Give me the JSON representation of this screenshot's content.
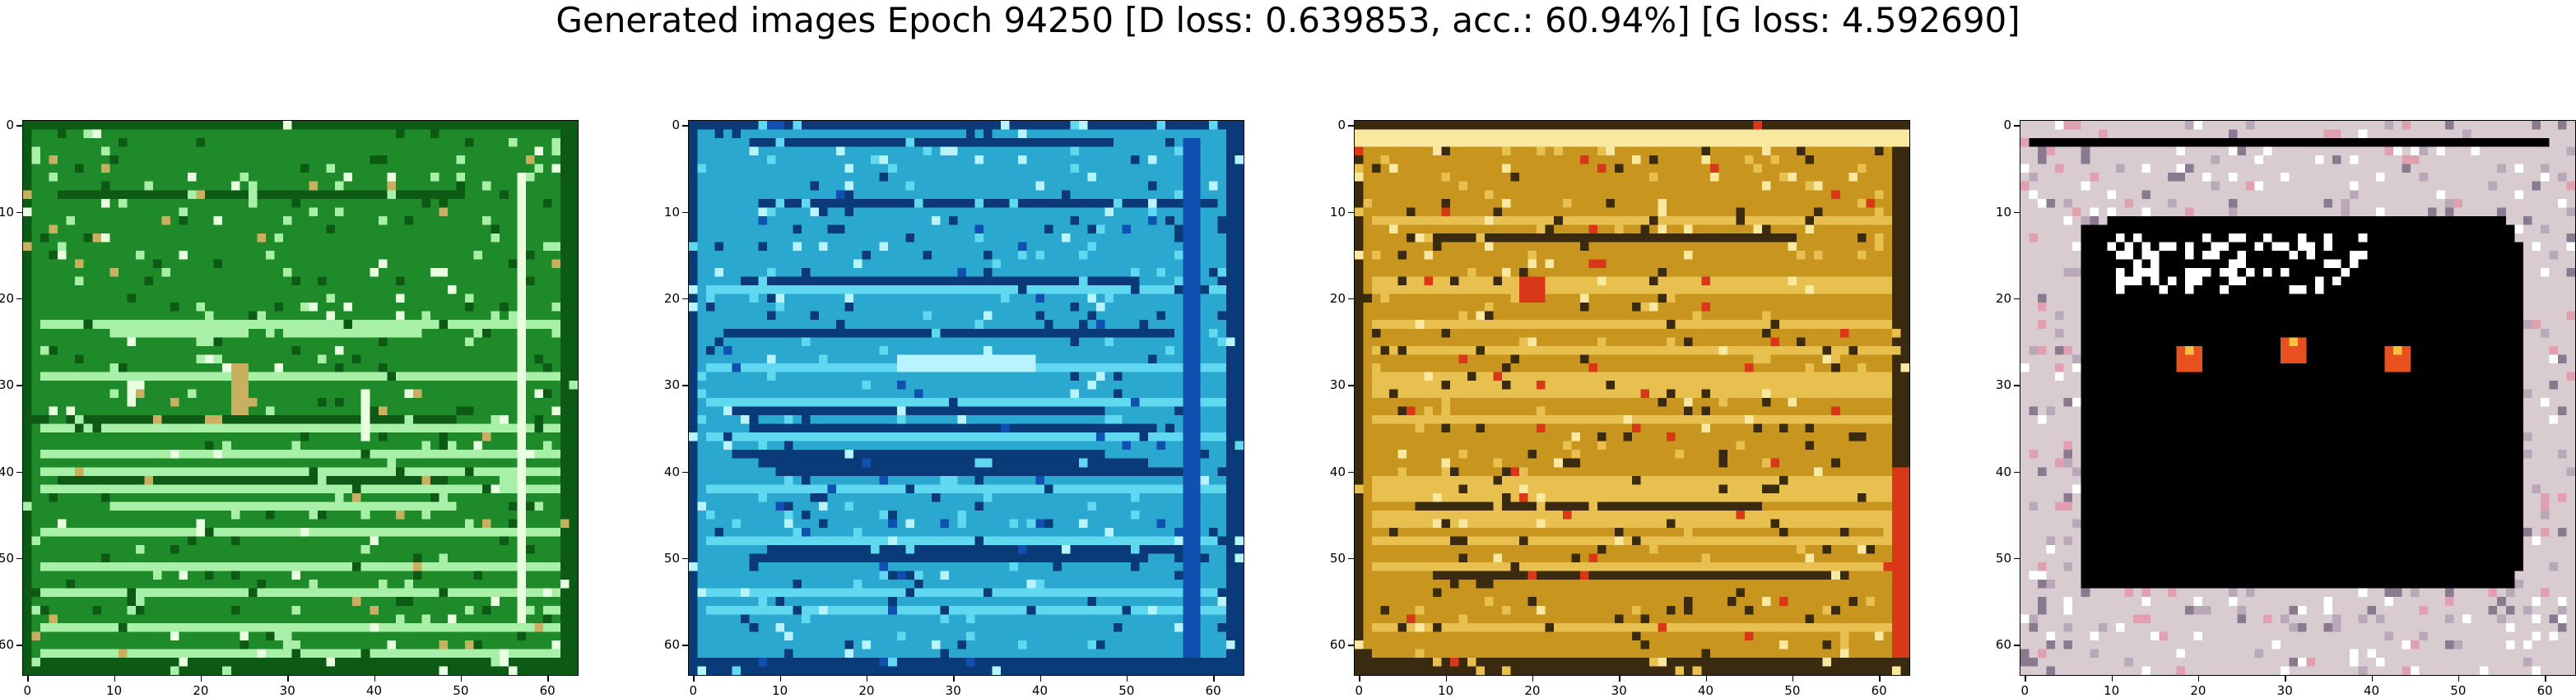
{
  "chart_data": [
    {
      "type": "heatmap",
      "title": "",
      "xlabel": "",
      "ylabel": "",
      "xlim": [
        0,
        63
      ],
      "ylim": [
        63,
        0
      ],
      "x_ticks": [
        "0",
        "10",
        "20",
        "30",
        "40",
        "50",
        "60"
      ],
      "y_ticks": [
        "0",
        "10",
        "20",
        "30",
        "40",
        "50",
        "60"
      ],
      "dominant_color": "#1f8a2a",
      "colors": {
        "base": "#1f8a2a",
        "dark": "#0c5a14",
        "light": "#a8f0a8",
        "bright": "#e8ffe0",
        "accent": "#c8b060"
      }
    },
    {
      "type": "heatmap",
      "title": "",
      "xlabel": "",
      "ylabel": "",
      "xlim": [
        0,
        63
      ],
      "ylim": [
        63,
        0
      ],
      "x_ticks": [
        "0",
        "10",
        "20",
        "30",
        "40",
        "50",
        "60"
      ],
      "y_ticks": [
        "0",
        "10",
        "20",
        "30",
        "40",
        "50",
        "60"
      ],
      "dominant_color": "#2aa8d0",
      "colors": {
        "base": "#2aa8d0",
        "dark": "#0a3a78",
        "light": "#60d8f0",
        "bright": "#b8f4ff",
        "accent": "#1050b0"
      }
    },
    {
      "type": "heatmap",
      "title": "",
      "xlabel": "",
      "ylabel": "",
      "xlim": [
        0,
        63
      ],
      "ylim": [
        63,
        0
      ],
      "x_ticks": [
        "0",
        "10",
        "20",
        "30",
        "40",
        "50",
        "60"
      ],
      "y_ticks": [
        "0",
        "10",
        "20",
        "30",
        "40",
        "50",
        "60"
      ],
      "dominant_color": "#c8961e",
      "colors": {
        "base": "#c8961e",
        "dark": "#3a2a10",
        "light": "#e8c050",
        "bright": "#f8e8a0",
        "accent": "#d83818"
      }
    },
    {
      "type": "heatmap",
      "title": "",
      "xlabel": "",
      "ylabel": "",
      "xlim": [
        0,
        63
      ],
      "ylim": [
        63,
        0
      ],
      "x_ticks": [
        "0",
        "10",
        "20",
        "30",
        "40",
        "50",
        "60"
      ],
      "y_ticks": [
        "0",
        "10",
        "20",
        "30",
        "40",
        "50",
        "60"
      ],
      "dominant_color": "#000000",
      "colors": {
        "base": "#d8ccd0",
        "dark": "#000000",
        "light": "#f4eef0",
        "bright": "#ffffff",
        "accent": "#e85020"
      }
    }
  ],
  "suptitle": "Generated images Epoch 94250 [D loss: 0.639853, acc.: 60.94%] [G loss: 4.592690]"
}
